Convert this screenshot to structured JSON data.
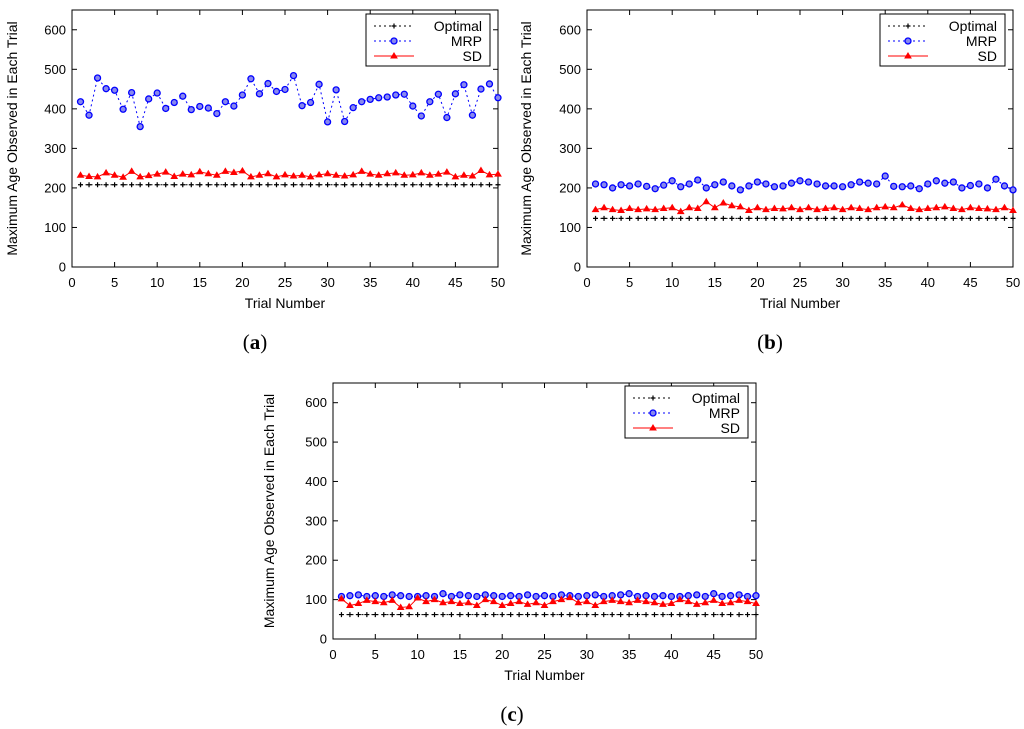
{
  "legend": {
    "optimal": "Optimal",
    "mrp": "MRP",
    "sd": "SD"
  },
  "colors": {
    "optimal": "#000000",
    "mrp": "#0000ff",
    "sd": "#ff0000",
    "marker_fill": "#8888ee"
  },
  "chart_data": [
    {
      "type": "line",
      "caption_letter": "a",
      "xlabel": "Trial Number",
      "ylabel": "Maximum Age Observed in Each Trial",
      "xlim": [
        0,
        50
      ],
      "ylim": [
        0,
        650
      ],
      "xticks": [
        0,
        5,
        10,
        15,
        20,
        25,
        30,
        35,
        40,
        45,
        50
      ],
      "yticks": [
        0,
        100,
        200,
        300,
        400,
        500,
        600
      ],
      "legend_position": "top-right",
      "grid": false,
      "series": [
        {
          "name": "Optimal",
          "values": [
            208,
            208,
            208,
            208,
            208,
            208,
            208,
            208,
            208,
            208,
            208,
            208,
            208,
            208,
            208,
            208,
            208,
            208,
            208,
            208,
            208,
            208,
            208,
            208,
            208,
            208,
            208,
            208,
            208,
            208,
            208,
            208,
            208,
            208,
            208,
            208,
            208,
            208,
            208,
            208,
            208,
            208,
            208,
            208,
            208,
            208,
            208,
            208,
            208,
            208
          ]
        },
        {
          "name": "MRP",
          "values": [
            418,
            384,
            478,
            451,
            447,
            399,
            441,
            355,
            425,
            440,
            401,
            416,
            432,
            398,
            406,
            402,
            388,
            418,
            407,
            435,
            476,
            438,
            464,
            444,
            449,
            484,
            408,
            416,
            462,
            367,
            448,
            368,
            403,
            418,
            424,
            428,
            430,
            435,
            437,
            407,
            382,
            418,
            437,
            378,
            438,
            461,
            384,
            450,
            463,
            428
          ]
        },
        {
          "name": "SD",
          "values": [
            232,
            229,
            228,
            238,
            232,
            227,
            242,
            228,
            231,
            235,
            240,
            229,
            235,
            233,
            241,
            236,
            232,
            242,
            239,
            243,
            228,
            232,
            236,
            228,
            233,
            230,
            232,
            228,
            233,
            236,
            232,
            230,
            233,
            242,
            235,
            232,
            236,
            238,
            232,
            233,
            238,
            232,
            235,
            240,
            228,
            232,
            230,
            244,
            233,
            235
          ]
        }
      ]
    },
    {
      "type": "line",
      "caption_letter": "b",
      "xlabel": "Trial Number",
      "ylabel": "Maximum Age Observed in Each Trial",
      "xlim": [
        0,
        50
      ],
      "ylim": [
        0,
        650
      ],
      "xticks": [
        0,
        5,
        10,
        15,
        20,
        25,
        30,
        35,
        40,
        45,
        50
      ],
      "yticks": [
        0,
        100,
        200,
        300,
        400,
        500,
        600
      ],
      "legend_position": "top-right",
      "grid": false,
      "series": [
        {
          "name": "Optimal",
          "values": [
            123,
            123,
            123,
            123,
            123,
            123,
            123,
            123,
            123,
            123,
            123,
            123,
            123,
            123,
            123,
            123,
            123,
            123,
            123,
            123,
            123,
            123,
            123,
            123,
            123,
            123,
            123,
            123,
            123,
            123,
            123,
            123,
            123,
            123,
            123,
            123,
            123,
            123,
            123,
            123,
            123,
            123,
            123,
            123,
            123,
            123,
            123,
            123,
            123,
            123
          ]
        },
        {
          "name": "MRP",
          "values": [
            210,
            208,
            200,
            208,
            205,
            210,
            204,
            198,
            207,
            218,
            203,
            210,
            220,
            200,
            208,
            215,
            205,
            195,
            205,
            215,
            210,
            203,
            205,
            212,
            218,
            215,
            210,
            205,
            205,
            203,
            208,
            215,
            212,
            210,
            230,
            204,
            203,
            205,
            198,
            210,
            218,
            212,
            215,
            200,
            206,
            210,
            200,
            222,
            205,
            195
          ]
        },
        {
          "name": "SD",
          "values": [
            145,
            150,
            145,
            143,
            148,
            145,
            147,
            145,
            148,
            150,
            140,
            150,
            148,
            165,
            150,
            162,
            155,
            152,
            143,
            150,
            145,
            148,
            147,
            150,
            145,
            150,
            145,
            148,
            150,
            145,
            150,
            148,
            145,
            150,
            152,
            150,
            157,
            148,
            145,
            148,
            150,
            152,
            148,
            145,
            150,
            148,
            147,
            145,
            150,
            143
          ]
        }
      ]
    },
    {
      "type": "line",
      "caption_letter": "c",
      "xlabel": "Trial Number",
      "ylabel": "Maximum Age Observed in Each Trial",
      "xlim": [
        0,
        50
      ],
      "ylim": [
        0,
        650
      ],
      "xticks": [
        0,
        5,
        10,
        15,
        20,
        25,
        30,
        35,
        40,
        45,
        50
      ],
      "yticks": [
        0,
        100,
        200,
        300,
        400,
        500,
        600
      ],
      "legend_position": "top-right",
      "grid": false,
      "series": [
        {
          "name": "Optimal",
          "values": [
            62,
            62,
            62,
            62,
            62,
            62,
            62,
            62,
            62,
            62,
            62,
            62,
            62,
            62,
            62,
            62,
            62,
            62,
            62,
            62,
            62,
            62,
            62,
            62,
            62,
            62,
            62,
            62,
            62,
            62,
            62,
            62,
            62,
            62,
            62,
            62,
            62,
            62,
            62,
            62,
            62,
            62,
            62,
            62,
            62,
            62,
            62,
            62,
            62,
            62
          ]
        },
        {
          "name": "MRP",
          "values": [
            108,
            110,
            112,
            108,
            110,
            108,
            112,
            110,
            108,
            108,
            110,
            108,
            115,
            108,
            112,
            110,
            108,
            112,
            110,
            108,
            110,
            108,
            112,
            108,
            110,
            108,
            112,
            110,
            108,
            110,
            112,
            108,
            110,
            112,
            115,
            108,
            110,
            108,
            110,
            108,
            108,
            110,
            112,
            108,
            115,
            108,
            110,
            112,
            108,
            110
          ]
        },
        {
          "name": "SD",
          "values": [
            102,
            85,
            90,
            98,
            95,
            92,
            98,
            80,
            82,
            104,
            95,
            100,
            92,
            95,
            90,
            92,
            85,
            100,
            95,
            85,
            90,
            95,
            88,
            92,
            85,
            95,
            100,
            105,
            92,
            95,
            85,
            95,
            98,
            95,
            92,
            98,
            95,
            92,
            88,
            90,
            100,
            95,
            88,
            92,
            98,
            90,
            92,
            98,
            95,
            90
          ]
        }
      ]
    }
  ]
}
